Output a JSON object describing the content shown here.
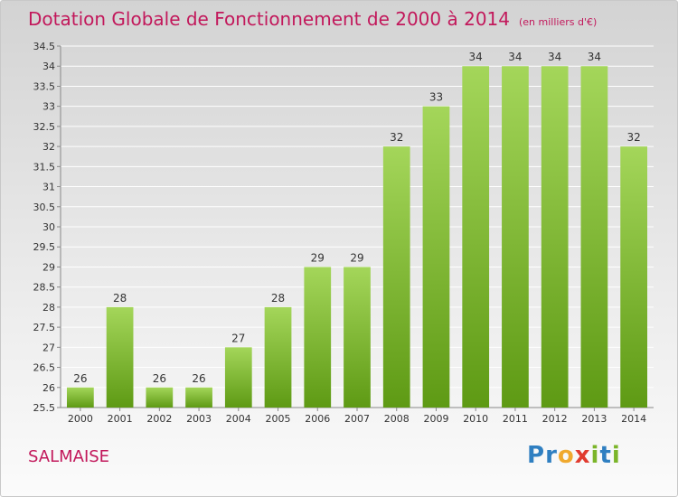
{
  "header": {
    "title": "Dotation Globale de Fonctionnement de 2000 à 2014",
    "unit": "(en milliers d'€)"
  },
  "commune": "SALMAISE",
  "brand": {
    "text": "Proxiti",
    "letters": [
      {
        "ch": "P",
        "color": "#2f7fc1"
      },
      {
        "ch": "r",
        "color": "#2f7fc1"
      },
      {
        "ch": "o",
        "color": "#f0a92e"
      },
      {
        "ch": "x",
        "color": "#e13b2f"
      },
      {
        "ch": "i",
        "color": "#7bb52a"
      },
      {
        "ch": "t",
        "color": "#2f7fc1"
      },
      {
        "ch": "i",
        "color": "#7bb52a"
      }
    ]
  },
  "colors": {
    "title": "#c2185b",
    "bar_light": "#a4d65a",
    "bar_dark": "#5e9a14",
    "grid": "#ffffff",
    "axis": "#888888",
    "text": "#333333"
  },
  "chart_data": {
    "type": "bar",
    "title": "Dotation Globale de Fonctionnement de 2000 à 2014",
    "subtitle": "(en milliers d'€)",
    "categories": [
      "2000",
      "2001",
      "2002",
      "2003",
      "2004",
      "2005",
      "2006",
      "2007",
      "2008",
      "2009",
      "2010",
      "2011",
      "2012",
      "2013",
      "2014"
    ],
    "values": [
      26,
      28,
      26,
      26,
      27,
      28,
      29,
      29,
      32,
      33,
      34,
      34,
      34,
      34,
      32
    ],
    "ylim": [
      25.5,
      34.5
    ],
    "yticks": [
      "25.5",
      "26",
      "26.5",
      "27",
      "27.5",
      "28",
      "28.5",
      "29",
      "29.5",
      "30",
      "30.5",
      "31",
      "31.5",
      "32",
      "32.5",
      "33",
      "33.5",
      "34",
      "34.5"
    ],
    "grid": true,
    "data_labels": true
  }
}
